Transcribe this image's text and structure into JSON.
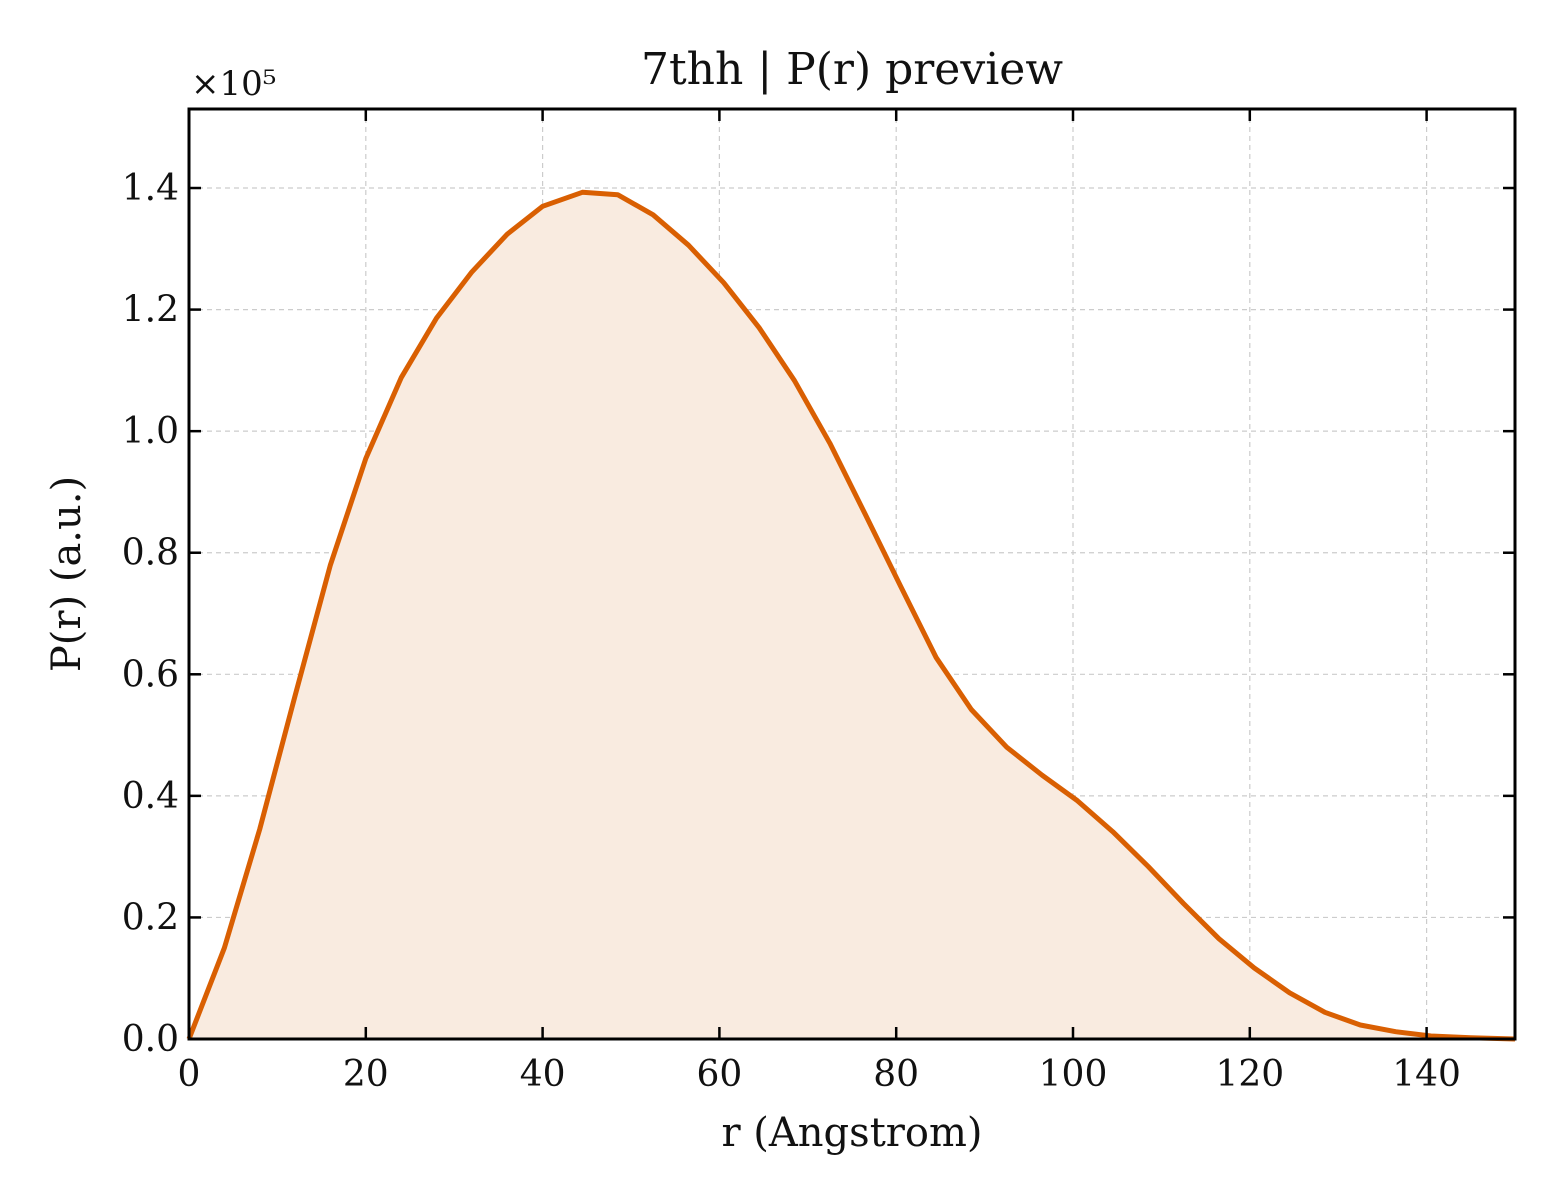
{
  "chart_data": {
    "type": "area",
    "title": "7thh | P(r) preview",
    "xlabel": "r (Angstrom)",
    "ylabel": "P(r) (a.u.)",
    "y_multiplier_label": "×10⁵",
    "xlim": [
      0,
      150
    ],
    "ylim": [
      0,
      1.53
    ],
    "xticks": [
      0,
      20,
      40,
      60,
      80,
      100,
      120,
      140
    ],
    "yticks": [
      0.0,
      0.2,
      0.4,
      0.6,
      0.8,
      1.0,
      1.2,
      1.4
    ],
    "xtick_labels": [
      "0",
      "20",
      "40",
      "60",
      "80",
      "100",
      "120",
      "140"
    ],
    "ytick_labels": [
      "0.0",
      "0.2",
      "0.4",
      "0.6",
      "0.8",
      "1.0",
      "1.2",
      "1.4"
    ],
    "grid": true,
    "line_color": "#d95f02",
    "fill_color": "#f9ebe0",
    "series": [
      {
        "x": [
          0,
          4,
          8,
          12,
          16,
          20,
          24,
          28,
          32,
          36,
          40,
          44.5,
          48.5,
          52.5,
          56.5,
          60.5,
          64.5,
          68.5,
          72.5,
          76.5,
          80.5,
          84.5,
          88.5,
          92.5,
          96.5,
          100.5,
          104.5,
          108.5,
          112.5,
          116.5,
          120.5,
          124.5,
          128.5,
          132.5,
          136.5,
          140.5,
          145,
          150
        ],
        "y": [
          0.0,
          0.15,
          0.345,
          0.565,
          0.78,
          0.955,
          1.088,
          1.186,
          1.262,
          1.324,
          1.37,
          1.393,
          1.389,
          1.356,
          1.306,
          1.244,
          1.17,
          1.083,
          0.98,
          0.863,
          0.745,
          0.628,
          0.542,
          0.48,
          0.434,
          0.392,
          0.341,
          0.284,
          0.223,
          0.165,
          0.117,
          0.076,
          0.044,
          0.023,
          0.012,
          0.005,
          0.002,
          0.0
        ]
      }
    ]
  }
}
